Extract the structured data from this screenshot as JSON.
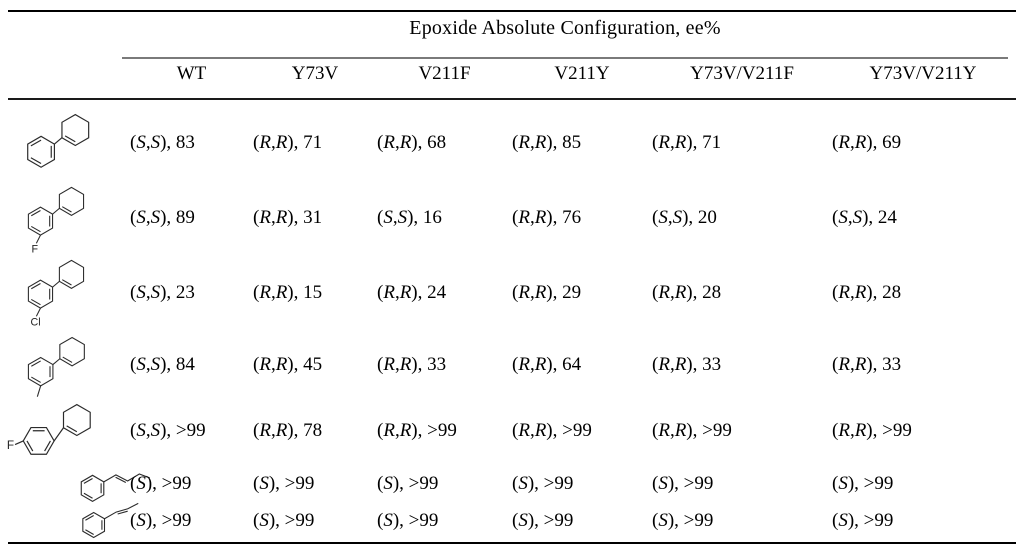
{
  "table": {
    "title": "Epoxide Absolute Configuration, ee%",
    "columns": [
      "WT",
      "Y73V",
      "V211F",
      "V211Y",
      "Y73V/V211F",
      "Y73V/V211Y"
    ],
    "rows": [
      {
        "structure": "phenylcyclohexene-icon",
        "atom_label": "",
        "cells": [
          "(S, S), 83",
          "(R, R), 71",
          "(R, R), 68",
          "(R, R), 85",
          "(R, R), 71",
          "(R, R), 69"
        ]
      },
      {
        "structure": "3-fluorophenylcyclohexene-icon",
        "atom_label": "F",
        "cells": [
          "(S, S), 89",
          "(R, R), 31",
          "(S, S), 16",
          "(R, R), 76",
          "(S, S), 20",
          "(S, S), 24"
        ]
      },
      {
        "structure": "3-chlorophenylcyclohexene-icon",
        "atom_label": "Cl",
        "cells": [
          "(S, S), 23",
          "(R, R), 15",
          "(R, R), 24",
          "(R, R), 29",
          "(R, R), 28",
          "(R, R), 28"
        ]
      },
      {
        "structure": "3-methylphenylcyclohexene-icon",
        "atom_label": "",
        "cells": [
          "(S, S), 84",
          "(R, R), 45",
          "(R, R), 33",
          "(R, R), 64",
          "(R, R), 33",
          "(R, R), 33"
        ]
      },
      {
        "structure": "4-fluorophenylcyclohexene-icon",
        "atom_label": "F",
        "cells": [
          "(S, S), >99",
          "(R, R), 78",
          "(R, R), >99",
          "(R, R), >99",
          "(R, R), >99",
          "(R, R), >99"
        ]
      },
      {
        "structure": "trans-1-phenyl-1-butene-icon",
        "atom_label": "",
        "cells": [
          "(S), >99",
          "(S), >99",
          "(S), >99",
          "(S), >99",
          "(S), >99",
          "(S), >99"
        ]
      },
      {
        "structure": "trans-1-phenylpropene-icon",
        "atom_label": "",
        "cells": [
          "(S), >99",
          "(S), >99",
          "(S), >99",
          "(S), >99",
          "(S), >99",
          "(S), >99"
        ]
      }
    ]
  },
  "colors": {
    "text": "#000000",
    "rule_dark": "#000000",
    "rule_light": "#7a7a7a",
    "background": "#ffffff"
  }
}
